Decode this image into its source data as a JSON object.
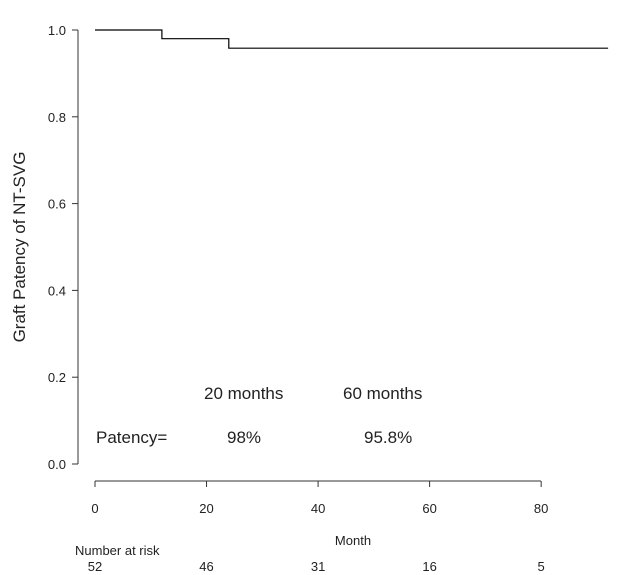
{
  "chart_data": {
    "type": "line",
    "step": true,
    "xlabel": "Month",
    "ylabel": "Graft Patency of NT-SVG",
    "xlim": [
      0,
      92
    ],
    "ylim": [
      0,
      1.0
    ],
    "x_ticks": [
      "0",
      "20",
      "40",
      "60",
      "80"
    ],
    "x_tick_values": [
      0,
      20,
      40,
      60,
      80
    ],
    "y_ticks": [
      "0.0",
      "0.2",
      "0.4",
      "0.6",
      "0.8",
      "1.0"
    ],
    "y_tick_values": [
      0,
      0.2,
      0.4,
      0.6,
      0.8,
      1.0
    ],
    "grid": false,
    "series": [
      {
        "x": [
          0,
          12,
          12,
          24,
          24,
          92
        ],
        "y": [
          1.0,
          1.0,
          0.98,
          0.98,
          0.958,
          0.958
        ],
        "color": "#000000"
      }
    ],
    "annotations": {
      "header_20": "20 months",
      "header_60": "60 months",
      "patency_label": "Patency=",
      "patency_20": "98%",
      "patency_60": "95.8%"
    },
    "risk_table": {
      "title": "Number at risk",
      "x": [
        0,
        20,
        40,
        60,
        80
      ],
      "values": [
        "52",
        "46",
        "31",
        "16",
        "5"
      ]
    }
  }
}
